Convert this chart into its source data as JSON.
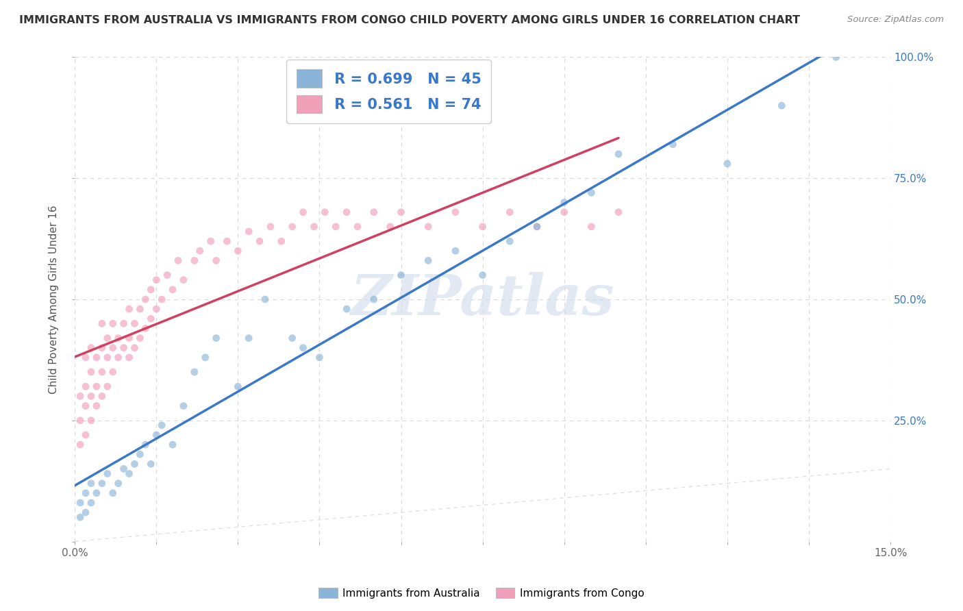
{
  "title": "IMMIGRANTS FROM AUSTRALIA VS IMMIGRANTS FROM CONGO CHILD POVERTY AMONG GIRLS UNDER 16 CORRELATION CHART",
  "source": "Source: ZipAtlas.com",
  "xlabel_legend_australia": "Immigrants from Australia",
  "xlabel_legend_congo": "Immigrants from Congo",
  "ylabel": "Child Poverty Among Girls Under 16",
  "R_australia": 0.699,
  "N_australia": 45,
  "R_congo": 0.561,
  "N_congo": 74,
  "xlim": [
    0,
    0.15
  ],
  "ylim": [
    0,
    1.0
  ],
  "xticks": [
    0.0,
    0.015,
    0.03,
    0.045,
    0.06,
    0.075,
    0.09,
    0.105,
    0.12,
    0.135,
    0.15
  ],
  "xtick_labels_show": [
    "0.0%",
    "",
    "",
    "",
    "",
    "",
    "",
    "",
    "",
    "",
    "15.0%"
  ],
  "yticks": [
    0.0,
    0.25,
    0.5,
    0.75,
    1.0
  ],
  "ytick_labels_right": [
    "",
    "25.0%",
    "50.0%",
    "75.0%",
    "100.0%"
  ],
  "color_australia": "#8ab4d8",
  "color_congo": "#f0a0b8",
  "regression_color_australia": "#3a78c9",
  "regression_color_congo": "#d04060",
  "watermark": "ZIPatlas",
  "background_color": "#ffffff",
  "grid_color": "#d8d8d8",
  "grid_style": "--",
  "australia_x": [
    0.001,
    0.001,
    0.002,
    0.002,
    0.003,
    0.003,
    0.004,
    0.005,
    0.006,
    0.007,
    0.008,
    0.009,
    0.01,
    0.011,
    0.012,
    0.013,
    0.014,
    0.015,
    0.016,
    0.018,
    0.02,
    0.022,
    0.024,
    0.026,
    0.03,
    0.032,
    0.035,
    0.04,
    0.042,
    0.045,
    0.05,
    0.055,
    0.06,
    0.065,
    0.07,
    0.075,
    0.08,
    0.085,
    0.09,
    0.095,
    0.1,
    0.11,
    0.12,
    0.13,
    0.14
  ],
  "australia_y": [
    0.05,
    0.08,
    0.06,
    0.1,
    0.08,
    0.12,
    0.1,
    0.12,
    0.14,
    0.1,
    0.12,
    0.15,
    0.14,
    0.16,
    0.18,
    0.2,
    0.16,
    0.22,
    0.24,
    0.2,
    0.28,
    0.35,
    0.38,
    0.42,
    0.32,
    0.42,
    0.5,
    0.42,
    0.4,
    0.38,
    0.48,
    0.5,
    0.55,
    0.58,
    0.6,
    0.55,
    0.62,
    0.65,
    0.7,
    0.72,
    0.8,
    0.82,
    0.78,
    0.9,
    1.0
  ],
  "congo_x": [
    0.001,
    0.001,
    0.001,
    0.002,
    0.002,
    0.002,
    0.002,
    0.003,
    0.003,
    0.003,
    0.003,
    0.004,
    0.004,
    0.004,
    0.005,
    0.005,
    0.005,
    0.005,
    0.006,
    0.006,
    0.006,
    0.007,
    0.007,
    0.007,
    0.008,
    0.008,
    0.009,
    0.009,
    0.01,
    0.01,
    0.01,
    0.011,
    0.011,
    0.012,
    0.012,
    0.013,
    0.013,
    0.014,
    0.014,
    0.015,
    0.015,
    0.016,
    0.017,
    0.018,
    0.019,
    0.02,
    0.022,
    0.023,
    0.025,
    0.026,
    0.028,
    0.03,
    0.032,
    0.034,
    0.036,
    0.038,
    0.04,
    0.042,
    0.044,
    0.046,
    0.048,
    0.05,
    0.052,
    0.055,
    0.058,
    0.06,
    0.065,
    0.07,
    0.075,
    0.08,
    0.085,
    0.09,
    0.095,
    0.1
  ],
  "congo_y": [
    0.2,
    0.25,
    0.3,
    0.22,
    0.28,
    0.32,
    0.38,
    0.25,
    0.3,
    0.35,
    0.4,
    0.28,
    0.32,
    0.38,
    0.3,
    0.35,
    0.4,
    0.45,
    0.32,
    0.38,
    0.42,
    0.35,
    0.4,
    0.45,
    0.38,
    0.42,
    0.4,
    0.45,
    0.38,
    0.42,
    0.48,
    0.4,
    0.45,
    0.42,
    0.48,
    0.44,
    0.5,
    0.46,
    0.52,
    0.48,
    0.54,
    0.5,
    0.55,
    0.52,
    0.58,
    0.54,
    0.58,
    0.6,
    0.62,
    0.58,
    0.62,
    0.6,
    0.64,
    0.62,
    0.65,
    0.62,
    0.65,
    0.68,
    0.65,
    0.68,
    0.65,
    0.68,
    0.65,
    0.68,
    0.65,
    0.68,
    0.65,
    0.68,
    0.65,
    0.68,
    0.65,
    0.68,
    0.65,
    0.68
  ]
}
